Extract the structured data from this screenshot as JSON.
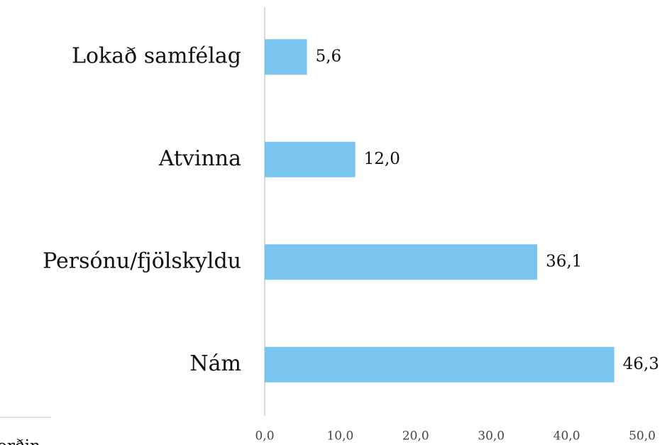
{
  "chart_data": {
    "type": "barh",
    "categories": [
      "Lokað samfélag",
      "Atvinna",
      "Persónu/fjölskyldu",
      "Nám"
    ],
    "values": [
      5.6,
      12.0,
      36.1,
      46.3
    ],
    "value_labels": [
      "5,6",
      "12,0",
      "36,1",
      "46,3"
    ],
    "color": "#7ac5ef",
    "xlim": [
      0,
      50
    ],
    "xticks": [
      {
        "value": 0,
        "label": "0,0"
      },
      {
        "value": 10,
        "label": "10,0"
      },
      {
        "value": 20,
        "label": "20,0"
      },
      {
        "value": 30,
        "label": "30,0"
      },
      {
        "value": 40,
        "label": "40,0"
      },
      {
        "value": 50,
        "label": "50,0"
      }
    ],
    "annotations": [
      "orðin"
    ]
  }
}
